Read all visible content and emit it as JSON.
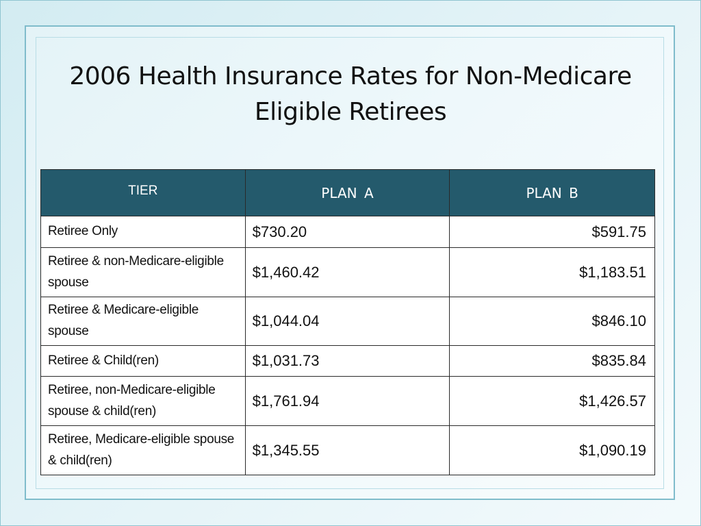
{
  "slide": {
    "title": "2006 Health Insurance Rates for Non-Medicare Eligible Retirees"
  },
  "table": {
    "headers": {
      "tier": "TIER",
      "plan_a": "PLAN  A",
      "plan_b": "PLAN  B"
    },
    "rows": [
      {
        "tier": "Retiree Only",
        "plan_a": "$730.20",
        "plan_b": "$591.75"
      },
      {
        "tier": "Retiree & non-Medicare-eligible spouse",
        "plan_a": "$1,460.42",
        "plan_b": "$1,183.51"
      },
      {
        "tier": "Retiree & Medicare-eligible spouse",
        "plan_a": "$1,044.04",
        "plan_b": "$846.10"
      },
      {
        "tier": "Retiree & Child(ren)",
        "plan_a": "$1,031.73",
        "plan_b": "$835.84"
      },
      {
        "tier": "Retiree, non-Medicare-eligible spouse & child(ren)",
        "plan_a": "$1,761.94",
        "plan_b": "$1,426.57"
      },
      {
        "tier": "Retiree, Medicare-eligible spouse & child(ren)",
        "plan_a": "$1,345.55",
        "plan_b": "$1,090.19"
      }
    ]
  },
  "colors": {
    "header_bg": "#245a6c",
    "header_text": "#ffffff",
    "frame_border": "#7fbccb"
  }
}
